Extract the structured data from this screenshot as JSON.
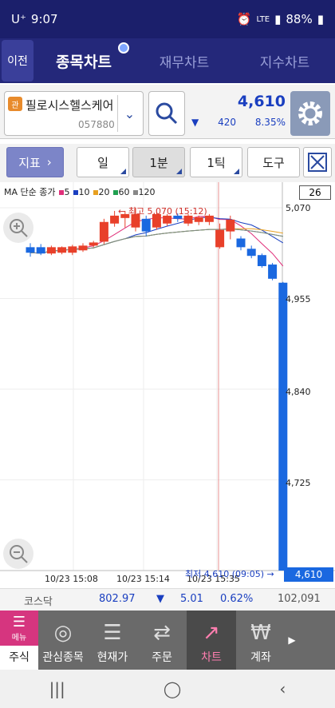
{
  "status": {
    "carrier": "U⁺",
    "time": "9:07",
    "battery": "88%"
  },
  "nav": {
    "back": "이전",
    "tabs": [
      "종목차트",
      "재무차트",
      "지수차트"
    ]
  },
  "stock": {
    "badge": "관",
    "name": "필로시스헬스케어",
    "code": "057880",
    "price": "4,610",
    "arrow": "▼",
    "change": "420",
    "percent": "8.35%"
  },
  "toolbar": {
    "indicator": "지표",
    "day": "일",
    "minute": "1분",
    "tick": "1틱",
    "tools": "도구"
  },
  "chart_legend": {
    "label": "MA 단순 종가",
    "items": [
      {
        "value": "5",
        "color": "#e0307a"
      },
      {
        "value": "10",
        "color": "#1a3fc0"
      },
      {
        "value": "20",
        "color": "#e8a020"
      },
      {
        "value": "60",
        "color": "#20a050"
      },
      {
        "value": "120",
        "color": "#888888"
      }
    ]
  },
  "counter": "26",
  "chart_data": {
    "type": "candlestick",
    "y_ticks": [
      "5,070",
      "4,955",
      "4,840",
      "4,725"
    ],
    "x_ticks": [
      "10/23 15:08",
      "10/23 15:14",
      "10/23 15:35"
    ],
    "high_label": "최고 5,070 (15:12)",
    "low_label": "최저 4,610 (09:05)",
    "last_price": "4,610",
    "candles": [
      {
        "o": 5020,
        "c": 5013,
        "h": 5025,
        "l": 5008
      },
      {
        "o": 5020,
        "c": 5012,
        "h": 5024,
        "l": 5010
      },
      {
        "o": 5012,
        "c": 5020,
        "h": 5022,
        "l": 5010
      },
      {
        "o": 5013,
        "c": 5020,
        "h": 5021,
        "l": 5011
      },
      {
        "o": 5013,
        "c": 5021,
        "h": 5023,
        "l": 5010
      },
      {
        "o": 5016,
        "c": 5022,
        "h": 5025,
        "l": 5014
      },
      {
        "o": 5022,
        "c": 5026,
        "h": 5028,
        "l": 5020
      },
      {
        "o": 5027,
        "c": 5052,
        "h": 5056,
        "l": 5024
      },
      {
        "o": 5050,
        "c": 5060,
        "h": 5066,
        "l": 5046
      },
      {
        "o": 5057,
        "c": 5062,
        "h": 5066,
        "l": 5045
      },
      {
        "o": 5045,
        "c": 5062,
        "h": 5070,
        "l": 5040
      },
      {
        "o": 5056,
        "c": 5040,
        "h": 5060,
        "l": 5034
      },
      {
        "o": 5045,
        "c": 5062,
        "h": 5064,
        "l": 5042
      },
      {
        "o": 5050,
        "c": 5060,
        "h": 5062,
        "l": 5047
      },
      {
        "o": 5060,
        "c": 5056,
        "h": 5063,
        "l": 5052
      },
      {
        "o": 5050,
        "c": 5060,
        "h": 5062,
        "l": 5047
      },
      {
        "o": 5052,
        "c": 5058,
        "h": 5060,
        "l": 5048
      },
      {
        "o": 5052,
        "c": 5060,
        "h": 5062,
        "l": 5048
      },
      {
        "o": 5020,
        "c": 5042,
        "h": 5050,
        "l": 5018
      },
      {
        "o": 5040,
        "c": 5055,
        "h": 5060,
        "l": 5030
      },
      {
        "o": 5031,
        "c": 5020,
        "h": 5034,
        "l": 5016
      },
      {
        "o": 5018,
        "c": 5009,
        "h": 5022,
        "l": 5006
      },
      {
        "o": 5010,
        "c": 4996,
        "h": 5012,
        "l": 4994
      },
      {
        "o": 4998,
        "c": 4980,
        "h": 5000,
        "l": 4978
      },
      {
        "o": 4975,
        "c": 4610,
        "h": 4976,
        "l": 4610
      }
    ]
  },
  "index": {
    "name": "코스닥",
    "value": "802.97",
    "arrow": "▼",
    "change": "5.01",
    "percent": "0.62%",
    "volume": "102,091"
  },
  "bottom_nav": {
    "menu_label": "메뉴",
    "menu_sub": "주식",
    "items": [
      "관심종목",
      "현재가",
      "주문",
      "차트",
      "계좌"
    ],
    "active": "차트"
  }
}
